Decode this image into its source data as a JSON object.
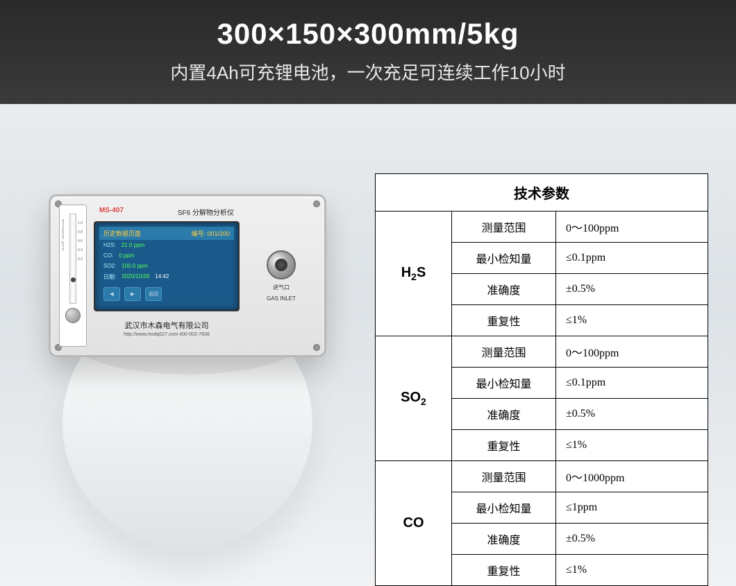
{
  "header": {
    "title": "300×150×300mm/5kg",
    "subtitle": "内置4Ah可充锂电池，一次充足可连续工作10小时"
  },
  "device": {
    "model": "MS-407",
    "title": "SF6 分解物分析仪",
    "flowmeter": {
      "label": "Air 20℃ 101325Pa L/min",
      "scale": [
        "1.0",
        "0.8",
        "0.6",
        "0.4",
        "0.2"
      ]
    },
    "screen": {
      "titlebar_left": "历史数据页面",
      "titlebar_right": "编号: 001/200",
      "rows": [
        {
          "label": "H2S:",
          "value": "21.0 ppm"
        },
        {
          "label": "CO:",
          "value": "0 ppm"
        },
        {
          "label": "SO2:",
          "value": "100.0 ppm"
        },
        {
          "label": "日期:",
          "value": "2020/10/26",
          "extra": "14:42"
        }
      ],
      "icons": [
        "◀",
        "▶",
        "返回"
      ]
    },
    "company": "武汉市木森电气有限公司",
    "company_sub": "http://www.msdq027.com   400-002-7608",
    "inlet_label_cn": "进气口",
    "inlet_label_en": "GAS INLET"
  },
  "spec": {
    "title": "技术参数",
    "params": [
      "测量范围",
      "最小检知量",
      "准确度",
      "重复性"
    ],
    "gases": [
      {
        "name": "H₂S",
        "values": [
          "0～100ppm",
          "≤0.1ppm",
          "±0.5%",
          "≤1%"
        ]
      },
      {
        "name": "SO₂",
        "values": [
          "0～100ppm",
          "≤0.1ppm",
          "±0.5%",
          "≤1%"
        ]
      },
      {
        "name": "CO",
        "values": [
          "0～1000ppm",
          "≤1ppm",
          "±0.5%",
          "≤1%"
        ]
      }
    ]
  },
  "colors": {
    "header_bg": "#2a2a2a",
    "main_bg": "#e8ecef",
    "screen_bg": "#1a5a8a",
    "model_color": "#d44444",
    "table_border": "#000000"
  }
}
